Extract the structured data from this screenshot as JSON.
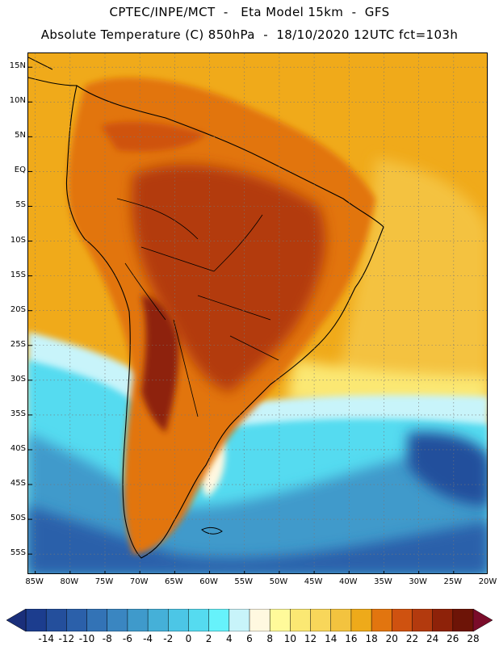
{
  "title_line1": "CPTEC/INPE/MCT  -   Eta Model 15km  -  GFS",
  "title_line2": "Absolute Temperature (C) 850hPa  -  18/10/2020 12UTC fct=103h",
  "latitude_labels": [
    "15N",
    "10N",
    "5N",
    "EQ",
    "5S",
    "10S",
    "15S",
    "20S",
    "25S",
    "30S",
    "35S",
    "40S",
    "45S",
    "50S",
    "55S"
  ],
  "longitude_labels": [
    "85W",
    "80W",
    "75W",
    "70W",
    "65W",
    "60W",
    "55W",
    "50W",
    "45W",
    "40W",
    "35W",
    "30W",
    "25W",
    "20W"
  ],
  "colorbar": {
    "labels": [
      "-14",
      "-12",
      "-10",
      "-8",
      "-6",
      "-4",
      "-2",
      "0",
      "2",
      "4",
      "6",
      "8",
      "10",
      "12",
      "14",
      "16",
      "18",
      "20",
      "22",
      "24",
      "26",
      "28"
    ],
    "colors": [
      "#1c3d8e",
      "#244f9c",
      "#2b60aa",
      "#3373b6",
      "#3a86c1",
      "#3f9acb",
      "#45b0d8",
      "#4cc6e6",
      "#55dbf0",
      "#66f2fb",
      "#c8f4fa",
      "#fff8e0",
      "#fffa9a",
      "#fbe873",
      "#f8d65a",
      "#f3c33f",
      "#eeaa1a",
      "#e2750f",
      "#cf5210",
      "#b33a0e",
      "#8e2209",
      "#6d1407"
    ]
  },
  "chart_data": {
    "type": "heatmap",
    "title": "CPTEC/INPE/MCT  -   Eta Model 15km  -  GFS",
    "subtitle": "Absolute Temperature (C) 850hPa  -  18/10/2020 12UTC fct=103h",
    "variable": "Absolute Temperature (C) 850hPa",
    "x_range_degrees_lon": [
      -86,
      -20
    ],
    "y_range_degrees_lat": [
      -58,
      17
    ],
    "grid": true,
    "colorbar_ticks": [
      -14,
      -12,
      -10,
      -8,
      -6,
      -4,
      -2,
      0,
      2,
      4,
      6,
      8,
      10,
      12,
      14,
      16,
      18,
      20,
      22,
      24,
      26,
      28
    ]
  }
}
